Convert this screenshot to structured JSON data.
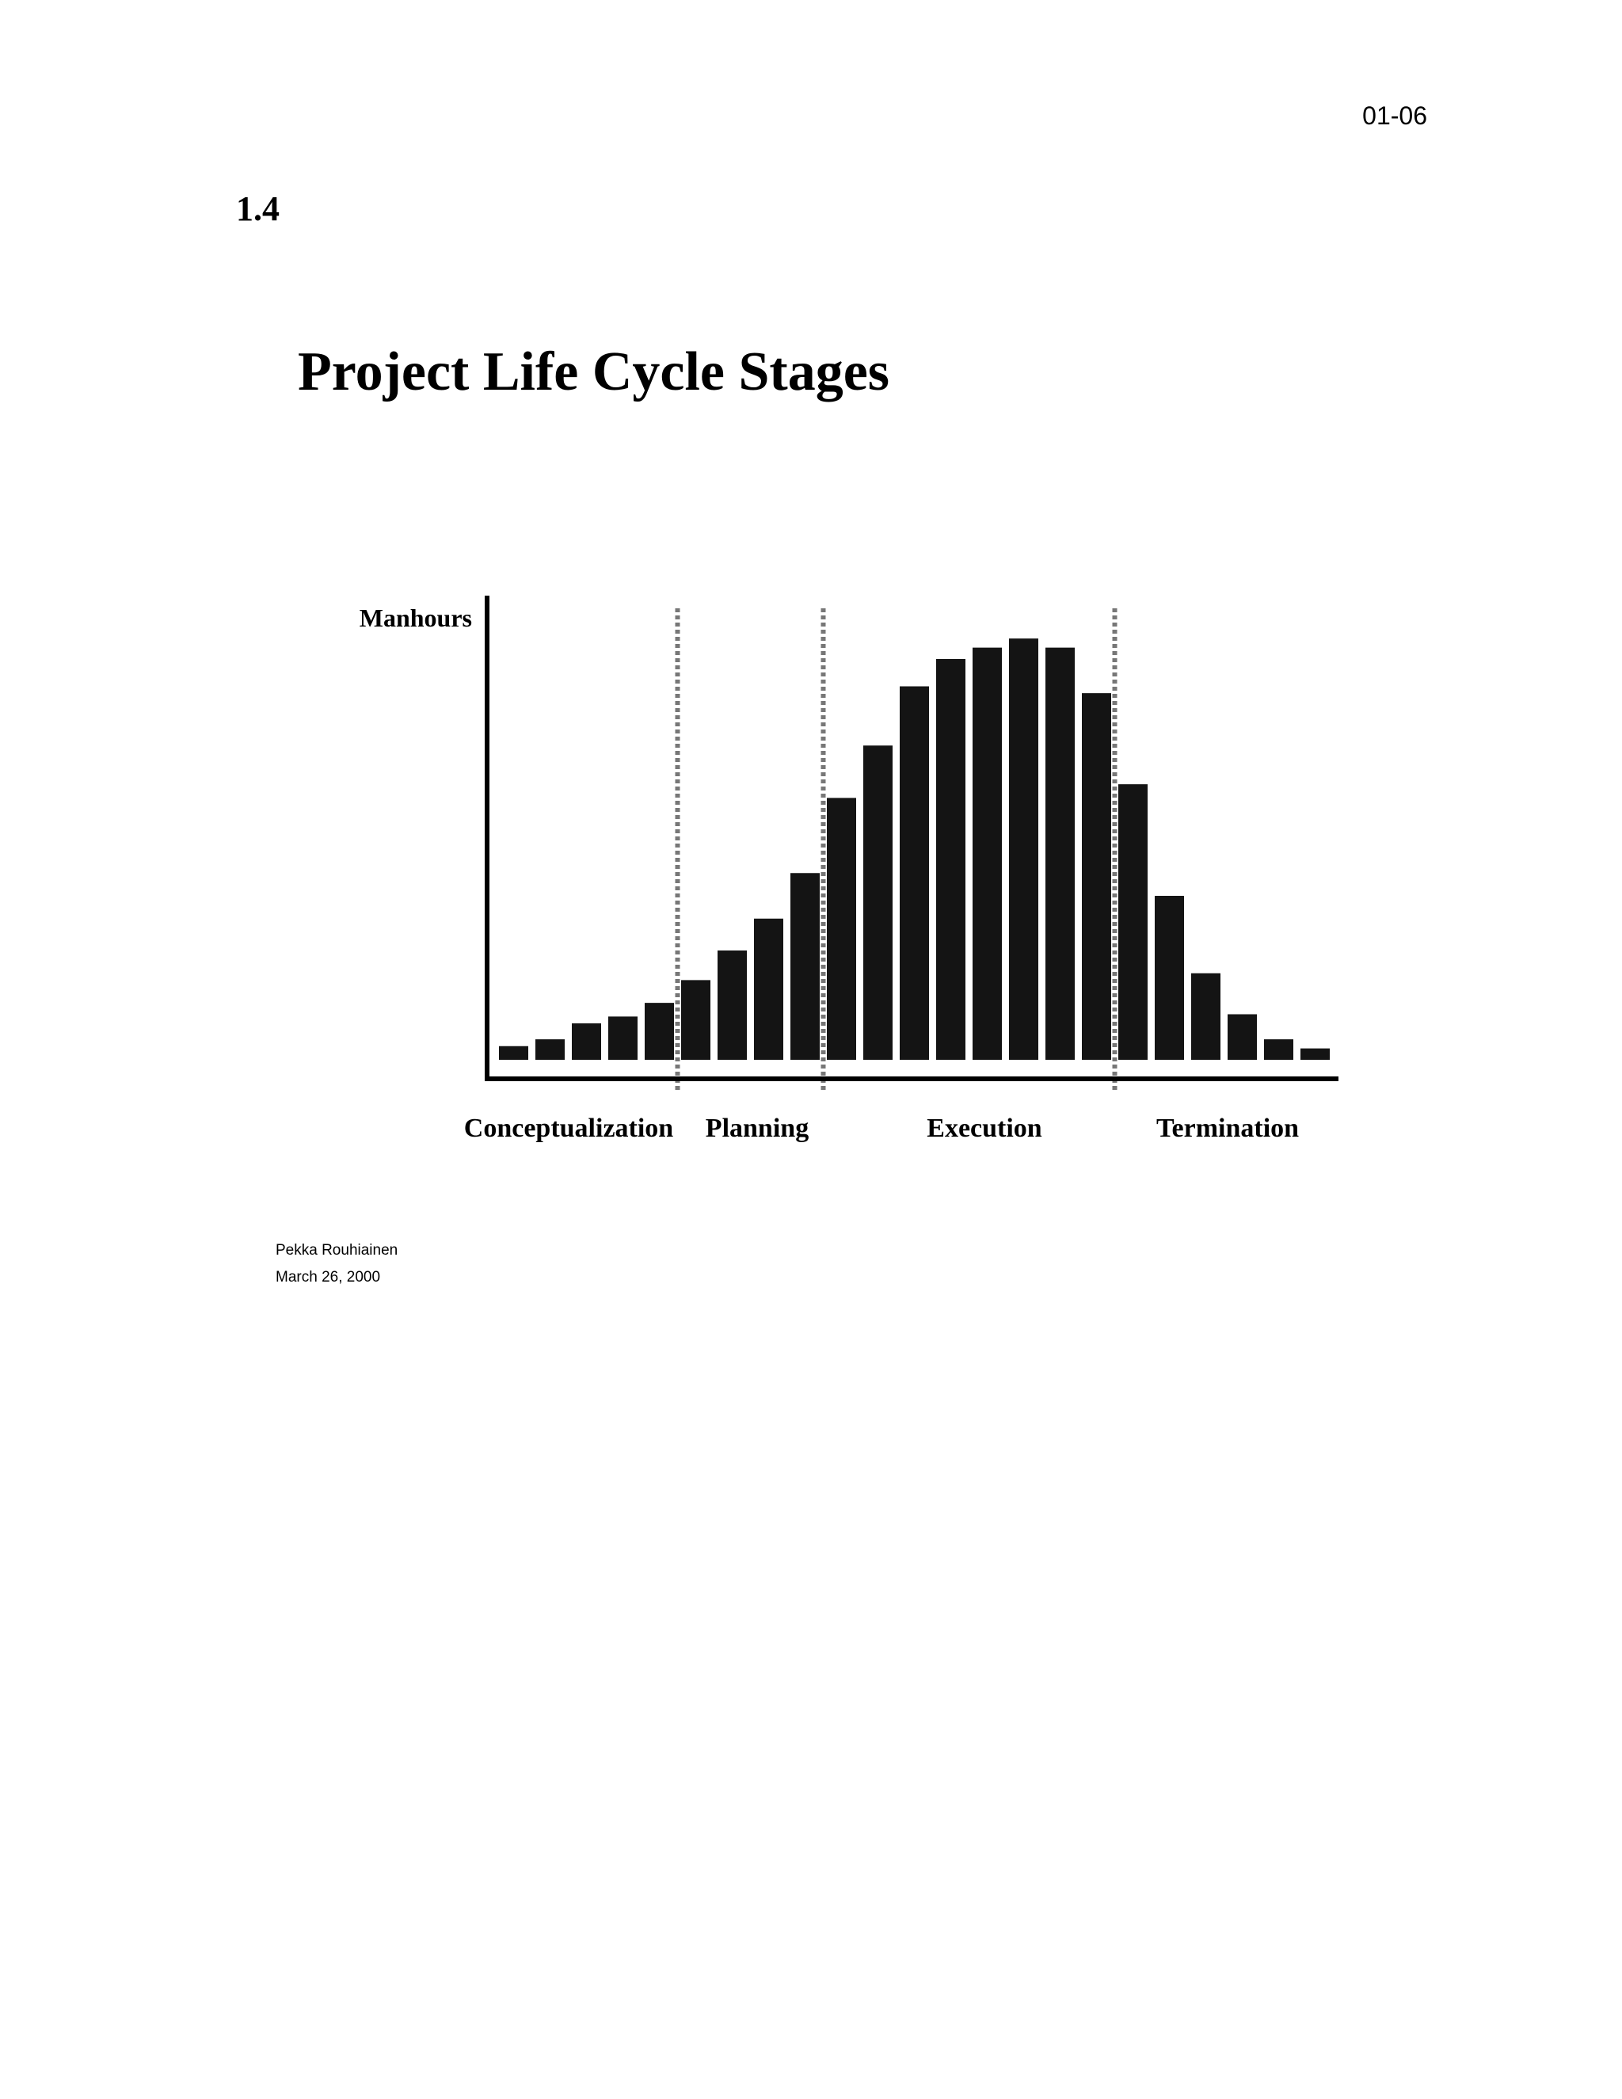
{
  "page": {
    "page_number": "01-06",
    "section_number": "1.4",
    "title": "Project Life Cycle Stages",
    "author": "Pekka Rouhiainen",
    "date": "March 26, 2000"
  },
  "chart_data": {
    "type": "bar",
    "title": "Project Life Cycle Stages",
    "ylabel": "Manhours",
    "xlabel": "",
    "values": [
      3,
      4.5,
      8,
      9.5,
      12.5,
      17.5,
      24,
      31,
      41,
      57.5,
      69,
      82,
      88,
      90.5,
      92.5,
      90.5,
      80.5,
      60.5,
      36,
      19,
      10,
      4.5,
      2.5
    ],
    "ylim": [
      0,
      100
    ],
    "phases": [
      {
        "name": "Conceptualization",
        "start_bar": 0,
        "end_bar": 5
      },
      {
        "name": "Planning",
        "start_bar": 5,
        "end_bar": 9
      },
      {
        "name": "Execution",
        "start_bar": 9,
        "end_bar": 17
      },
      {
        "name": "Termination",
        "start_bar": 17,
        "end_bar": 23
      }
    ],
    "bar_color": "#141414",
    "divider_color": "#777777"
  }
}
